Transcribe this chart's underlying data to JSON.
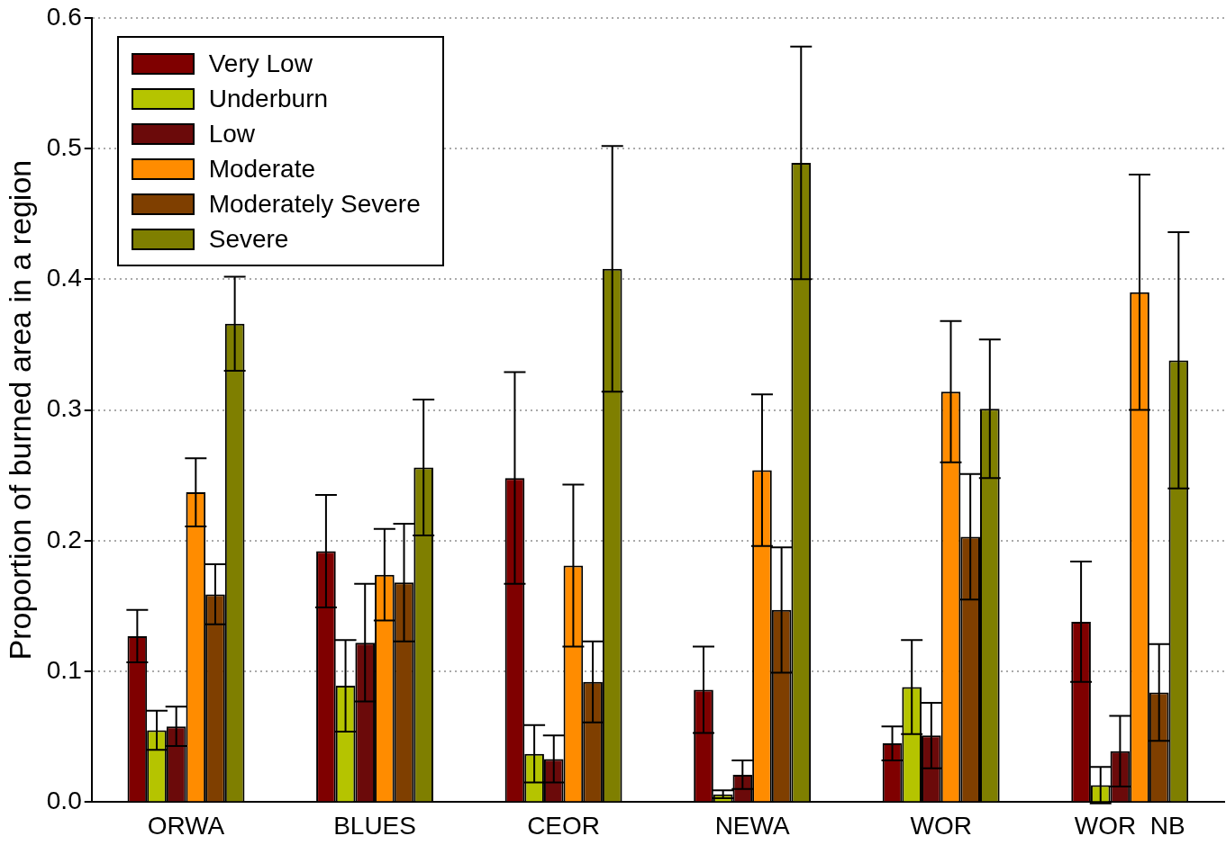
{
  "chart_data": {
    "type": "bar",
    "ylabel": "Proportion of burned area in a region",
    "categories": [
      "ORWA",
      "BLUES",
      "CEOR",
      "NEWA",
      "WOR",
      "WOR  NB"
    ],
    "series": [
      {
        "name": "Very Low",
        "color": "#7f0000",
        "values": [
          0.127,
          0.192,
          0.248,
          0.086,
          0.045,
          0.138
        ],
        "errors": [
          0.02,
          0.043,
          0.081,
          0.033,
          0.013,
          0.046
        ]
      },
      {
        "name": "Underburn",
        "color": "#b5c400",
        "values": [
          0.055,
          0.089,
          0.037,
          0.006,
          0.088,
          0.013
        ],
        "errors": [
          0.015,
          0.035,
          0.022,
          0.003,
          0.036,
          0.014
        ]
      },
      {
        "name": "Low",
        "color": "#6b0a0a",
        "values": [
          0.058,
          0.122,
          0.033,
          0.021,
          0.051,
          0.039
        ],
        "errors": [
          0.015,
          0.045,
          0.018,
          0.011,
          0.025,
          0.027
        ]
      },
      {
        "name": "Moderate",
        "color": "#ff8c00",
        "values": [
          0.237,
          0.174,
          0.181,
          0.254,
          0.314,
          0.39
        ],
        "errors": [
          0.026,
          0.035,
          0.062,
          0.058,
          0.054,
          0.09
        ]
      },
      {
        "name": "Moderately Severe",
        "color": "#7f3f00",
        "values": [
          0.159,
          0.168,
          0.092,
          0.147,
          0.203,
          0.084
        ],
        "errors": [
          0.023,
          0.045,
          0.031,
          0.048,
          0.048,
          0.037
        ]
      },
      {
        "name": "Severe",
        "color": "#7f7f00",
        "values": [
          0.366,
          0.256,
          0.408,
          0.489,
          0.301,
          0.338
        ],
        "errors": [
          0.036,
          0.052,
          0.094,
          0.089,
          0.053,
          0.098
        ]
      }
    ],
    "ylim": [
      0,
      0.6
    ],
    "yticks": [
      {
        "value": 0,
        "label": "0.0"
      },
      0.1,
      0.2,
      0.3,
      0.4,
      0.5,
      0.6
    ],
    "grid": "y",
    "legend": "top left"
  }
}
